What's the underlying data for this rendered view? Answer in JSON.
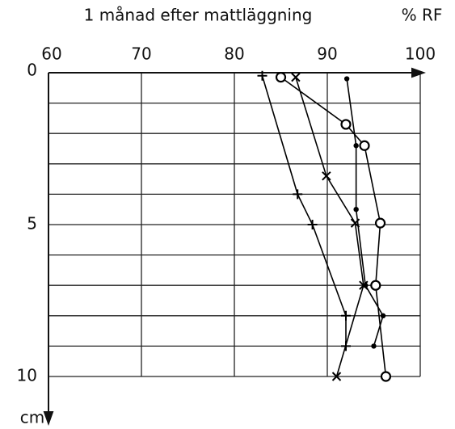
{
  "chart_data": {
    "type": "line",
    "title": "1 månad efter mattläggning",
    "xlabel": "% RF",
    "ylabel": "cm",
    "xlim": [
      60,
      100
    ],
    "xticks": [
      60,
      70,
      80,
      90,
      100
    ],
    "ylim": [
      0,
      10
    ],
    "yticks": [
      0,
      5,
      10
    ],
    "y_minor_ticks": [
      1,
      2,
      3,
      4,
      6,
      7,
      8,
      9
    ],
    "y_inverted": true,
    "x_axis_position": "top",
    "grid": true,
    "series": [
      {
        "marker": "circle",
        "color": "#000000",
        "x": [
          85,
          92,
          94,
          95.7,
          95.2,
          96.3
        ],
        "values": [
          0.15,
          1.7,
          2.4,
          4.95,
          7,
          10
        ]
      },
      {
        "marker": "dot",
        "color": "#000000",
        "x": [
          92.1,
          93.1,
          93.1,
          94.1,
          96,
          95
        ],
        "values": [
          0.2,
          2.4,
          4.5,
          7,
          8,
          9
        ]
      },
      {
        "marker": "x",
        "color": "#000000",
        "x": [
          86.6,
          89.9,
          93,
          93.9,
          91
        ],
        "values": [
          0.15,
          3.4,
          4.95,
          7,
          10
        ]
      },
      {
        "marker": "plus",
        "color": "#000000",
        "x": [
          83,
          86.8,
          88.4,
          92,
          92
        ],
        "values": [
          0.1,
          4,
          5,
          8,
          9
        ]
      }
    ]
  }
}
